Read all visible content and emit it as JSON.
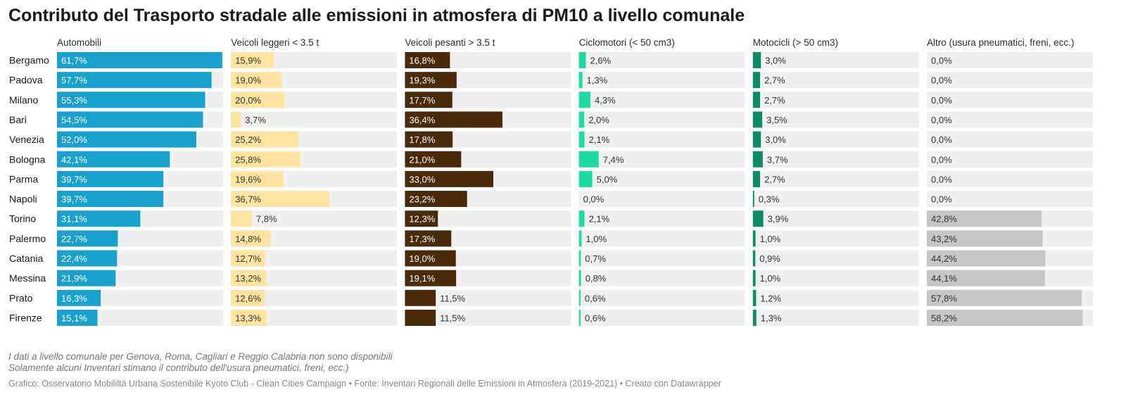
{
  "title": "Contributo del Trasporto stradale alle emissioni in atmosfera di PM10 a livello comunale",
  "notes": [
    "I dati a livello comunale per Genova, Roma, Cagliari e Reggio Calabria non sono disponibili",
    "Solamente alcuni Inventari stimano il contributo dell'usura pneumatici, freni, ecc.)"
  ],
  "footer": "Grafico: Osservatorio Mobililtà Urbana Sostenibile Kyoto Club - Clean Cities Campaign • Fonte: Inventari Regionali delle Emissioni in Atmosfera (2019-2021) • Creato con Datawrapper",
  "chart_data": {
    "type": "bar",
    "orientation": "horizontal",
    "layout": "small-multiples",
    "unit": "%",
    "xlim": [
      0,
      62
    ],
    "categories": [
      "Bergamo",
      "Padova",
      "Milano",
      "Bari",
      "Venezia",
      "Bologna",
      "Parma",
      "Napoli",
      "Torino",
      "Palermo",
      "Catania",
      "Messina",
      "Prato",
      "Firenze"
    ],
    "series": [
      {
        "name": "Automobili",
        "color": "#18a1cd",
        "label_color": "#ffffff",
        "values": [
          61.7,
          57.7,
          55.3,
          54.5,
          52.0,
          42.1,
          39.7,
          39.7,
          31.1,
          22.7,
          22.4,
          21.9,
          16.3,
          15.1
        ],
        "labels": [
          "61,7%",
          "57,7%",
          "55,3%",
          "54,5%",
          "52,0%",
          "42,1%",
          "39,7%",
          "39,7%",
          "31,1%",
          "22,7%",
          "22,4%",
          "21,9%",
          "16,3%",
          "15,1%"
        ]
      },
      {
        "name": "Veicoli leggeri < 3.5 t",
        "color": "#ffe39e",
        "label_color": "#333333",
        "values": [
          15.9,
          19.0,
          20.0,
          3.7,
          25.2,
          25.8,
          19.6,
          36.7,
          7.8,
          14.8,
          12.7,
          13.2,
          12.6,
          13.3
        ],
        "labels": [
          "15,9%",
          "19,0%",
          "20,0%",
          "3,7%",
          "25,2%",
          "25,8%",
          "19,6%",
          "36,7%",
          "7,8%",
          "14,8%",
          "12,7%",
          "13,2%",
          "12,6%",
          "13,3%"
        ]
      },
      {
        "name": "Veicoli pesanti > 3.5 t",
        "color": "#4a2a08",
        "label_color": "#ffffff",
        "values": [
          16.8,
          19.3,
          17.7,
          36.4,
          17.8,
          21.0,
          33.0,
          23.2,
          12.3,
          17.3,
          19.0,
          19.1,
          11.5,
          11.5
        ],
        "labels": [
          "16,8%",
          "19,3%",
          "17,7%",
          "36,4%",
          "17,8%",
          "21,0%",
          "33,0%",
          "23,2%",
          "12,3%",
          "17,3%",
          "19,0%",
          "19,1%",
          "11,5%",
          "11,5%"
        ]
      },
      {
        "name": "Ciclomotori (< 50 cm3)",
        "color": "#1ddba2",
        "label_color": "#333333",
        "values": [
          2.6,
          1.3,
          4.3,
          2.0,
          2.1,
          7.4,
          5.0,
          0.0,
          2.1,
          1.0,
          0.7,
          0.8,
          0.6,
          0.6
        ],
        "labels": [
          "2,6%",
          "1,3%",
          "4,3%",
          "2,0%",
          "2,1%",
          "7,4%",
          "5,0%",
          "0,0%",
          "2,1%",
          "1,0%",
          "0,7%",
          "0,8%",
          "0,6%",
          "0,6%"
        ]
      },
      {
        "name": "Motocicli (> 50 cm3)",
        "color": "#0d8a68",
        "label_color": "#333333",
        "values": [
          3.0,
          2.7,
          2.7,
          3.5,
          3.0,
          3.7,
          2.7,
          0.3,
          3.9,
          1.0,
          0.9,
          1.0,
          1.2,
          1.3
        ],
        "labels": [
          "3,0%",
          "2,7%",
          "2,7%",
          "3,5%",
          "3,0%",
          "3,7%",
          "2,7%",
          "0,3%",
          "3,9%",
          "1,0%",
          "0,9%",
          "1,0%",
          "1,2%",
          "1,3%"
        ]
      },
      {
        "name": "Altro (usura pneumatici, freni, ecc.)",
        "color": "#c6c6c6",
        "label_color": "#333333",
        "values": [
          0.0,
          0.0,
          0.0,
          0.0,
          0.0,
          0.0,
          0.0,
          0.0,
          42.8,
          43.2,
          44.2,
          44.1,
          57.8,
          58.2
        ],
        "labels": [
          "0,0%",
          "0,0%",
          "0,0%",
          "0,0%",
          "0,0%",
          "0,0%",
          "0,0%",
          "0,0%",
          "42,8%",
          "43,2%",
          "44,2%",
          "44,1%",
          "57,8%",
          "58,2%"
        ]
      }
    ],
    "colors": {
      "track": "#efefef",
      "title": "#1a1a1a",
      "text": "#181818"
    }
  }
}
